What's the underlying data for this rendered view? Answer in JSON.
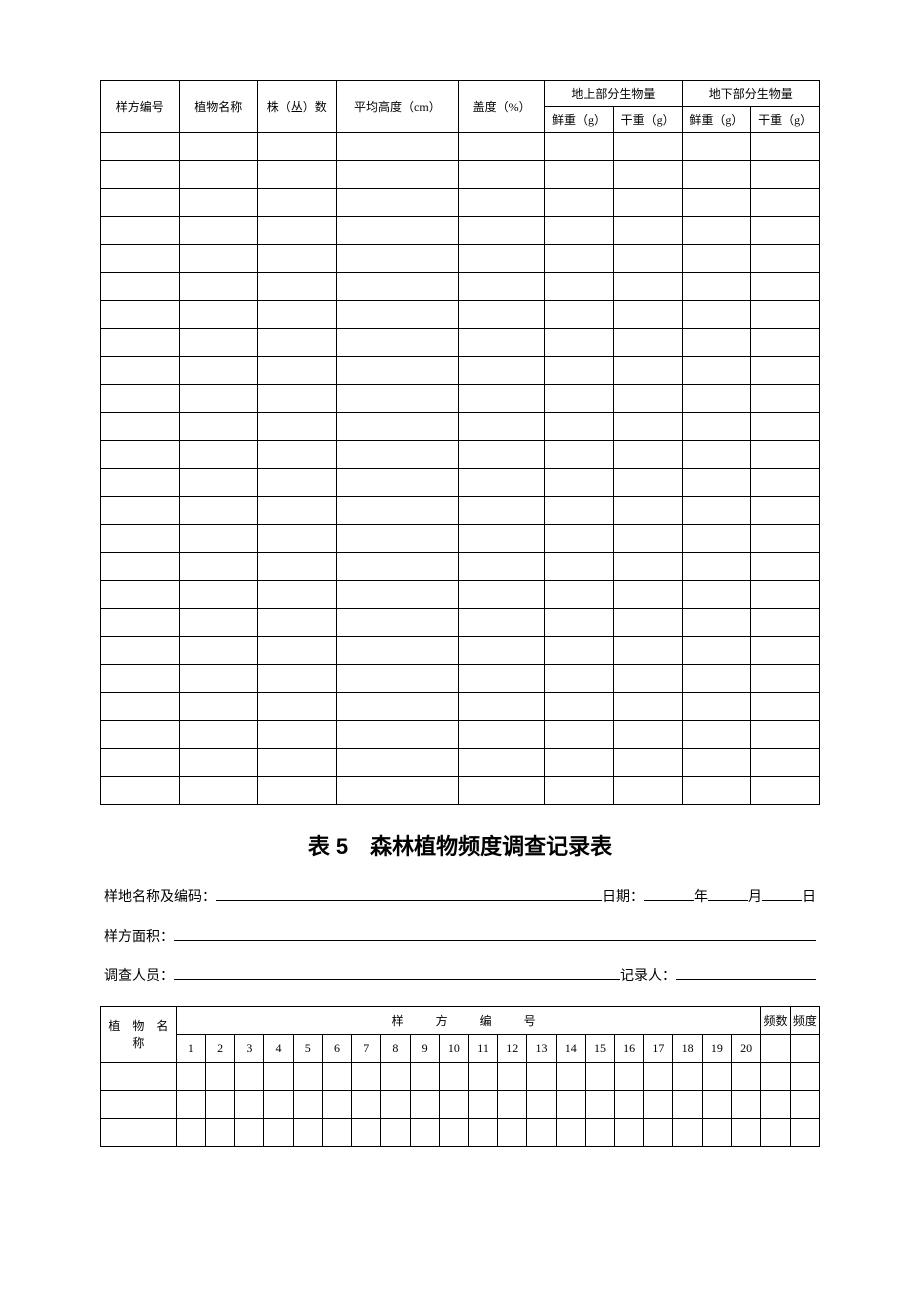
{
  "table1": {
    "columns": {
      "col1": "样方编号",
      "col2": "植物名称",
      "col3": "株（丛）数",
      "col4": "平均高度（cm）",
      "col5": "盖度（%）",
      "group1": "地上部分生物量",
      "group2": "地下部分生物量",
      "sub1": "鲜重（g）",
      "sub2": "干重（g）",
      "sub3": "鲜重（g）",
      "sub4": "干重（g）"
    },
    "empty_row_count": 24,
    "col_widths": [
      "64",
      "64",
      "64",
      "100",
      "70",
      "56",
      "56",
      "56",
      "56"
    ],
    "border_color": "#000000",
    "font_size": 12
  },
  "title": "表 5　森林植物频度调查记录表",
  "form": {
    "line1_label1": "样地名称及编码：",
    "line1_label2": "日期：",
    "line1_year": "年",
    "line1_month": "月",
    "line1_day": "日",
    "line2_label": "样方面积：",
    "line3_label1": "调查人员：",
    "line3_label2": "记录人："
  },
  "table2": {
    "col1_label": "植　物　名称",
    "group_label": "样　方　编　号",
    "freq_count": "频数",
    "freq_deg": "频度",
    "sample_numbers": [
      "1",
      "2",
      "3",
      "4",
      "5",
      "6",
      "7",
      "8",
      "9",
      "10",
      "11",
      "12",
      "13",
      "14",
      "15",
      "16",
      "17",
      "18",
      "19",
      "20"
    ],
    "empty_row_count": 3,
    "border_color": "#000000",
    "font_size": 12
  }
}
